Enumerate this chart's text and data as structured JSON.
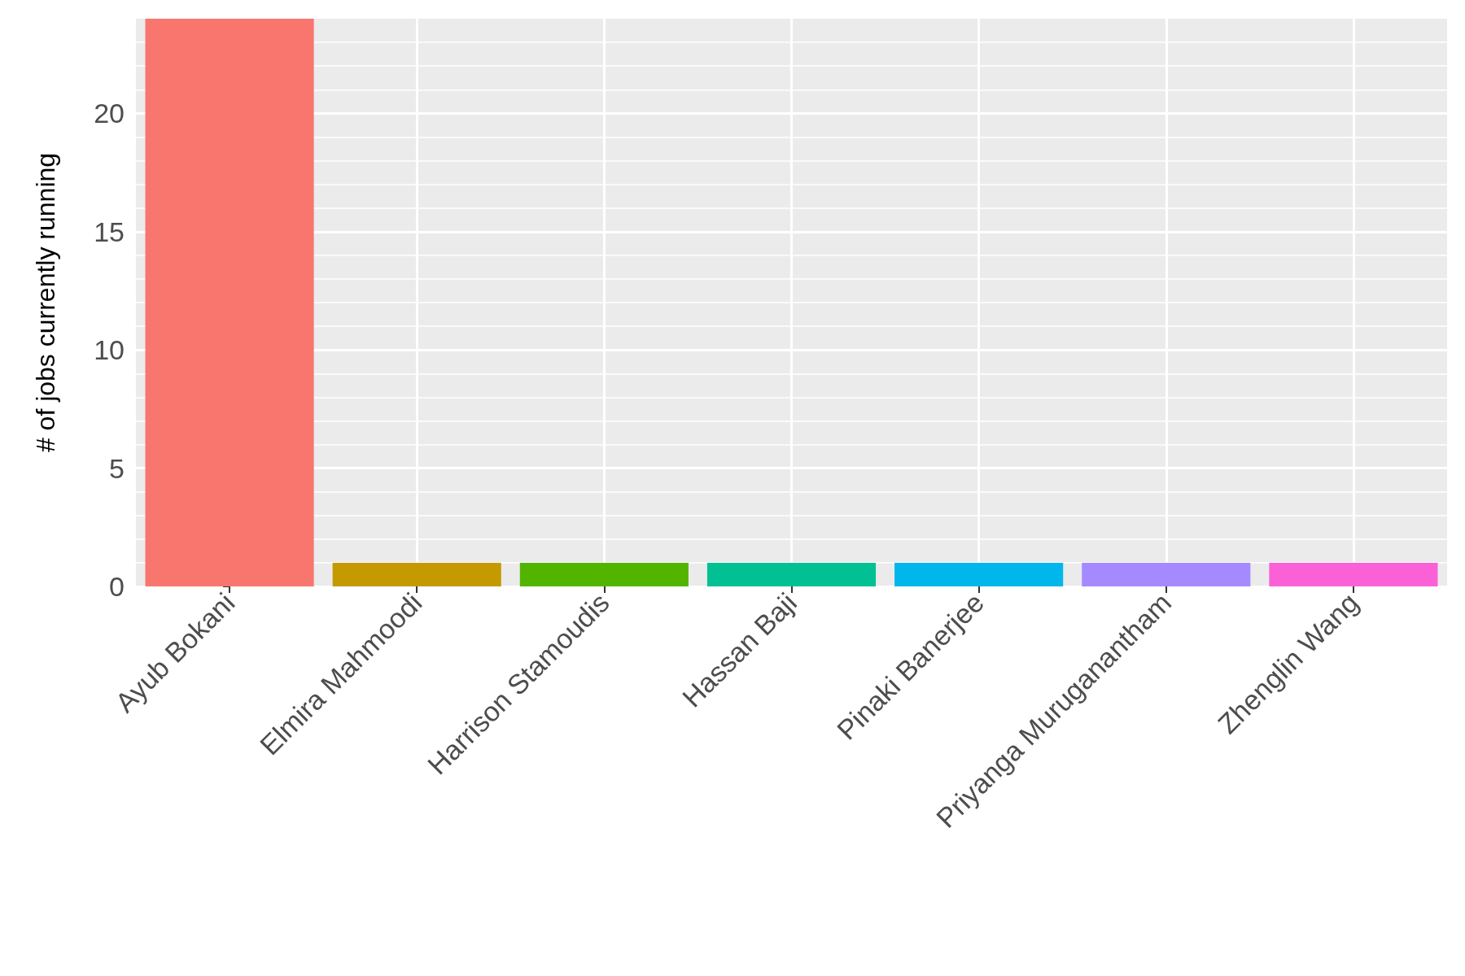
{
  "chart_data": {
    "type": "bar",
    "ylabel": "# of jobs currently running",
    "categories": [
      "Ayub Bokani",
      "Elmira Mahmoodi",
      "Harrison Stamoudis",
      "Hassan Baji",
      "Pinaki Banerjee",
      "Priyanga Muruganantham",
      "Zhenglin Wang"
    ],
    "values": [
      24,
      1,
      1,
      1,
      1,
      1,
      1
    ],
    "colors": [
      "#f8766d",
      "#c49a00",
      "#53b400",
      "#00c094",
      "#00b6eb",
      "#a58aff",
      "#fb61d7"
    ],
    "ylim": [
      0,
      24
    ],
    "yticks": [
      0,
      5,
      10,
      15,
      20
    ],
    "grid": true
  }
}
